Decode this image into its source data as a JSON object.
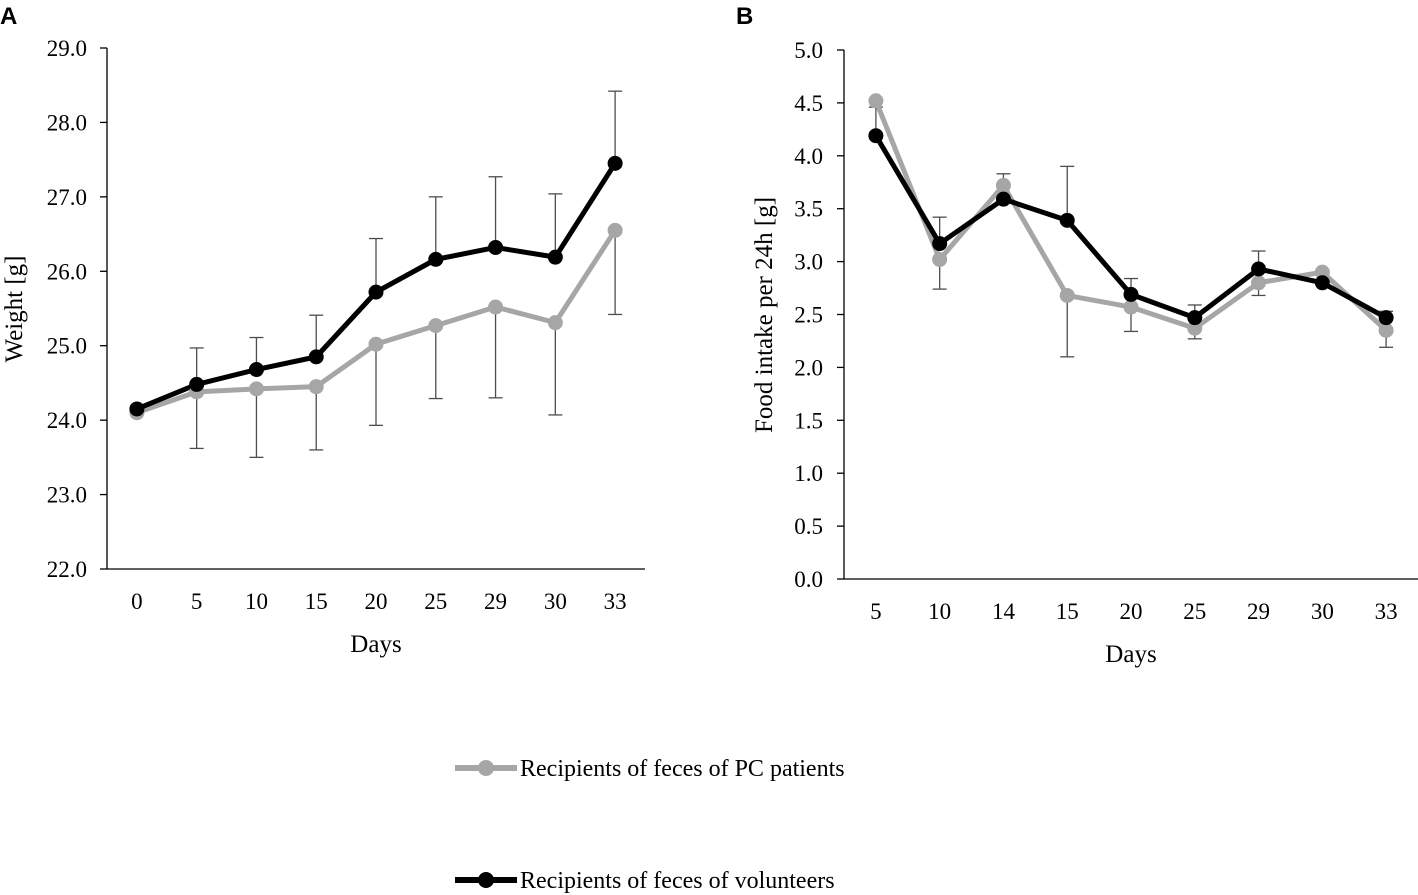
{
  "chart_data": [
    {
      "type": "line",
      "panel_label": "A",
      "title": "",
      "xlabel": "Days",
      "ylabel": "Weight [g]",
      "categories": [
        "0",
        "5",
        "10",
        "15",
        "20",
        "25",
        "29",
        "30",
        "33"
      ],
      "ylim": [
        22.0,
        29.0
      ],
      "yticks": [
        "22.0",
        "23.0",
        "24.0",
        "25.0",
        "26.0",
        "27.0",
        "28.0",
        "29.0"
      ],
      "grid": false,
      "series": [
        {
          "name": "Recipients of feces of PC patients",
          "color": "#a6a6a6",
          "values": [
            24.1,
            24.38,
            24.42,
            24.45,
            25.02,
            25.27,
            25.52,
            25.31,
            26.55
          ],
          "error_low": [
            null,
            23.62,
            23.5,
            23.6,
            23.93,
            24.29,
            24.3,
            24.07,
            25.42
          ],
          "error_high": [
            null,
            null,
            null,
            null,
            null,
            null,
            null,
            null,
            null
          ]
        },
        {
          "name": "Recipients of feces of volunteers",
          "color": "#000000",
          "values": [
            24.15,
            24.48,
            24.68,
            24.85,
            25.72,
            26.16,
            26.32,
            26.19,
            27.45
          ],
          "error_low": [
            null,
            null,
            null,
            null,
            null,
            null,
            null,
            null,
            null
          ],
          "error_high": [
            null,
            24.97,
            25.11,
            25.41,
            26.44,
            27.0,
            27.27,
            27.04,
            28.42
          ]
        }
      ]
    },
    {
      "type": "line",
      "panel_label": "B",
      "title": "",
      "xlabel": "Days",
      "ylabel": "Food intake per 24h [g]",
      "categories": [
        "5",
        "10",
        "14",
        "15",
        "20",
        "25",
        "29",
        "30",
        "33"
      ],
      "ylim": [
        0.0,
        5.0
      ],
      "yticks": [
        "0.0",
        "0.5",
        "1.0",
        "1.5",
        "2.0",
        "2.5",
        "3.0",
        "3.5",
        "4.0",
        "4.5",
        "5.0"
      ],
      "grid": false,
      "series": [
        {
          "name": "Recipients of feces of PC patients",
          "color": "#a6a6a6",
          "values": [
            4.52,
            3.02,
            3.72,
            2.68,
            2.57,
            2.37,
            2.8,
            2.9,
            2.35
          ],
          "error_low": [
            null,
            2.74,
            null,
            2.1,
            2.34,
            2.27,
            2.68,
            null,
            2.19
          ],
          "error_high": [
            null,
            null,
            null,
            null,
            null,
            null,
            null,
            null,
            null
          ]
        },
        {
          "name": "Recipients of feces of volunteers",
          "color": "#000000",
          "values": [
            4.19,
            3.17,
            3.59,
            3.39,
            2.69,
            2.47,
            2.93,
            2.8,
            2.47
          ],
          "error_low": [
            null,
            null,
            null,
            null,
            null,
            null,
            null,
            null,
            null
          ],
          "error_high": [
            4.46,
            3.42,
            3.83,
            3.9,
            2.84,
            2.59,
            3.1,
            null,
            2.53
          ]
        }
      ]
    }
  ],
  "legend": {
    "items": [
      {
        "label": "Recipients of feces of PC patients",
        "color": "#a6a6a6"
      },
      {
        "label": "Recipients of feces of volunteers",
        "color": "#000000"
      }
    ]
  }
}
